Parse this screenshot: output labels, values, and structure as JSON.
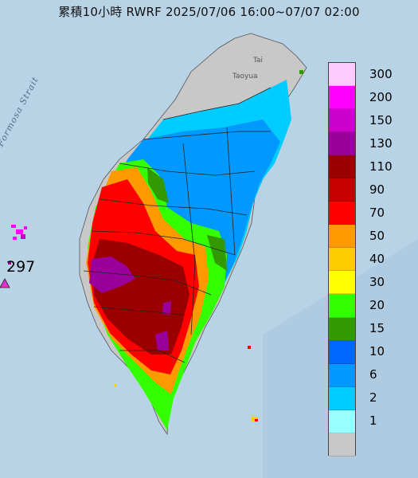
{
  "title": "累積10小時 RWRF 2025/07/06 16:00~07/07 02:00",
  "strait_label": "Formosa Strait",
  "marker": {
    "value": "297",
    "shape": "triangle",
    "color": "#e52fd3"
  },
  "legend": [
    {
      "color": "#fecbff",
      "label": "300"
    },
    {
      "color": "#ff00ff",
      "label": "200"
    },
    {
      "color": "#cc00cc",
      "label": "150"
    },
    {
      "color": "#9a009a",
      "label": "130"
    },
    {
      "color": "#9b0000",
      "label": "110"
    },
    {
      "color": "#c90000",
      "label": "90"
    },
    {
      "color": "#fe0000",
      "label": "70"
    },
    {
      "color": "#ff9900",
      "label": "50"
    },
    {
      "color": "#ffcc00",
      "label": "40"
    },
    {
      "color": "#ffff00",
      "label": "30"
    },
    {
      "color": "#33ff00",
      "label": "20"
    },
    {
      "color": "#339900",
      "label": "15"
    },
    {
      "color": "#0066ff",
      "label": "10"
    },
    {
      "color": "#0099ff",
      "label": "6"
    },
    {
      "color": "#00ccff",
      "label": "2"
    },
    {
      "color": "#99ffff",
      "label": "1"
    },
    {
      "color": "#c8c8c8",
      "label": ""
    }
  ],
  "colors": {
    "sea": "#b9d3e6",
    "land_gray": "#c8c8c8",
    "boundary": "#222222"
  }
}
